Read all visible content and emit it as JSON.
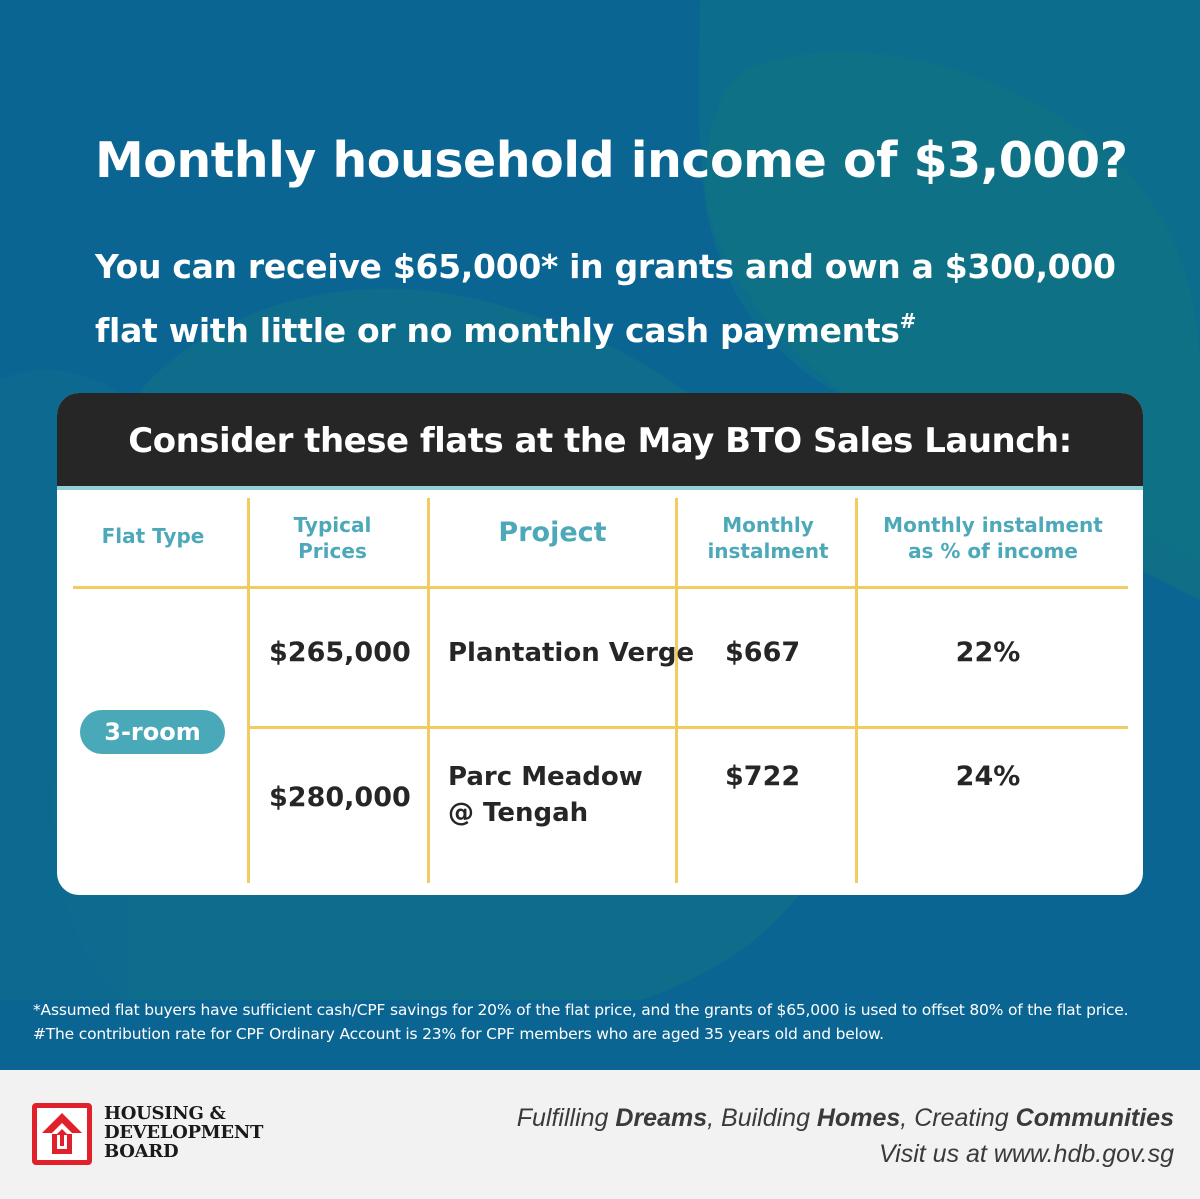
{
  "headline": "Monthly household income of $3,000?",
  "subline": {
    "part1": "You can receive $65,000* in grants and own a $300,000 flat with little or no monthly cash payments",
    "mark": "#"
  },
  "card": {
    "title": "Consider these flats at the May BTO Sales Launch:",
    "headers": {
      "flat_type": "Flat Type",
      "prices_1": "Typical",
      "prices_2": "Prices",
      "project": "Project",
      "instalment_1": "Monthly",
      "instalment_2": "instalment",
      "pct_1": "Monthly instalment",
      "pct_2": "as % of income"
    },
    "flat_type": "3-room",
    "rows": [
      {
        "price": "$265,000",
        "project_1": "Plantation Verge",
        "project_2": "",
        "instalment": "$667",
        "pct": "22%"
      },
      {
        "price": "$280,000",
        "project_1": "Parc Meadow",
        "project_2": "@ Tengah",
        "instalment": "$722",
        "pct": "24%"
      }
    ]
  },
  "footnotes": {
    "line1": "*Assumed flat buyers have sufficient cash/CPF savings for 20% of the flat price, and the grants of $65,000 is used to offset 80% of the flat price.",
    "line2": "#The contribution rate for CPF Ordinary Account is 23% for CPF members who are aged 35 years old and below."
  },
  "footer": {
    "logo_line1": "HOUSING &",
    "logo_line2": "DEVELOPMENT",
    "logo_line3": "BOARD",
    "tag_1": "Fulfilling ",
    "tag_2": "Dreams",
    "tag_3": ", Building ",
    "tag_4": "Homes",
    "tag_5": ", Creating ",
    "tag_6": "Communities",
    "visit": "Visit us at www.hdb.gov.sg"
  },
  "colors": {
    "background": "#0b6593",
    "accent_teal": "#4aa9b8",
    "grid_yellow": "#f3cb63",
    "header_dark": "#262626",
    "logo_red": "#e0202a"
  },
  "icons": [
    "hdb-logo-icon"
  ]
}
